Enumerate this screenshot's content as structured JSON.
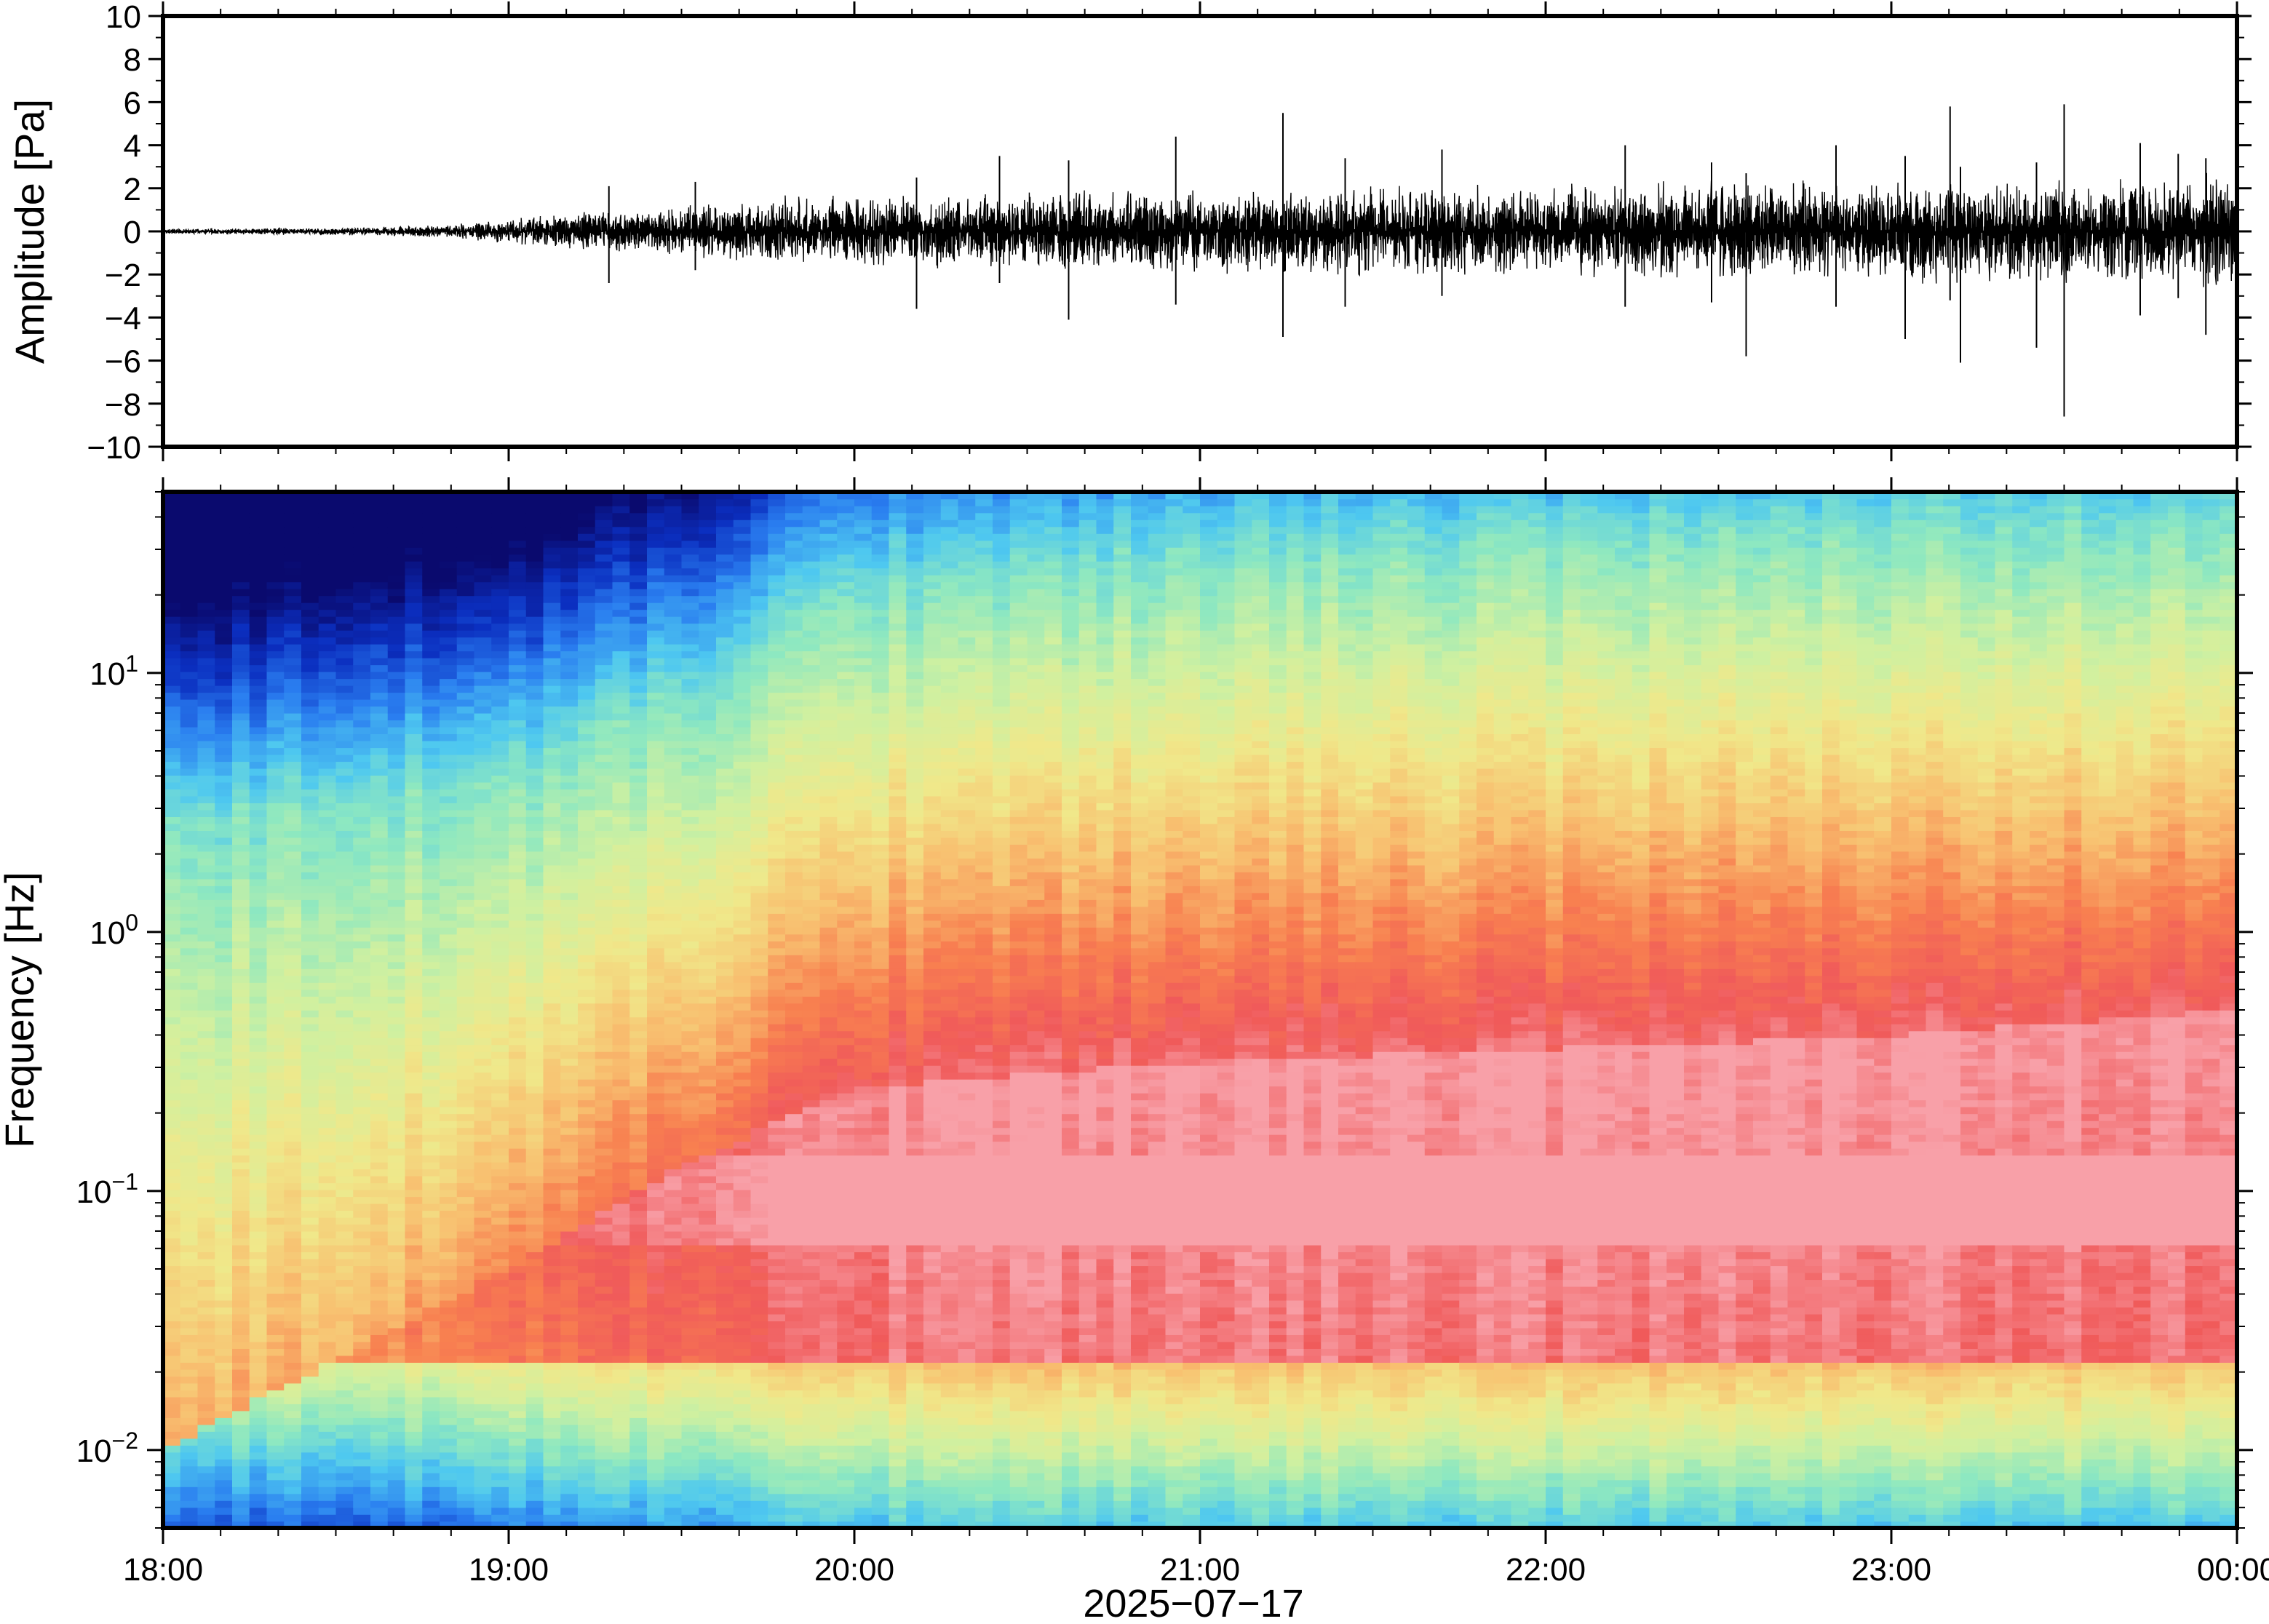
{
  "chart_data": [
    {
      "type": "line",
      "panel": "waveform",
      "ylabel": "Amplitude [Pa]",
      "ylim": [
        -10,
        10
      ],
      "yticks": [
        -10,
        -8,
        -6,
        -4,
        -2,
        0,
        2,
        4,
        6,
        8,
        10
      ],
      "ytick_labels": [
        "−10",
        "−8",
        "−6",
        "−4",
        "−2",
        "0",
        "2",
        "4",
        "6",
        "8",
        "10"
      ],
      "xlim_hours": [
        18,
        24
      ],
      "envelope": {
        "t_hours": [
          18.0,
          18.5,
          18.8,
          19.0,
          19.2,
          19.5,
          19.8,
          20.0,
          20.5,
          21.0,
          21.5,
          22.0,
          22.5,
          23.0,
          23.5,
          24.0
        ],
        "amplitude": [
          0.1,
          0.15,
          0.25,
          0.5,
          0.8,
          1.1,
          1.4,
          1.5,
          1.6,
          1.7,
          1.8,
          1.9,
          2.0,
          2.1,
          2.2,
          2.3
        ]
      },
      "spikes": [
        {
          "t_hours": 19.29,
          "max": 2.1,
          "min": -2.4
        },
        {
          "t_hours": 19.54,
          "max": 2.3,
          "min": -1.8
        },
        {
          "t_hours": 20.18,
          "max": 2.5,
          "min": -3.6
        },
        {
          "t_hours": 20.42,
          "max": 3.5,
          "min": -2.4
        },
        {
          "t_hours": 20.62,
          "max": 3.3,
          "min": -4.1
        },
        {
          "t_hours": 20.93,
          "max": 4.4,
          "min": -3.4
        },
        {
          "t_hours": 21.24,
          "max": 5.5,
          "min": -4.9
        },
        {
          "t_hours": 21.42,
          "max": 3.4,
          "min": -3.5
        },
        {
          "t_hours": 21.7,
          "max": 3.8,
          "min": -3.0
        },
        {
          "t_hours": 22.23,
          "max": 4.0,
          "min": -3.5
        },
        {
          "t_hours": 22.48,
          "max": 3.2,
          "min": -3.3
        },
        {
          "t_hours": 22.58,
          "max": 2.7,
          "min": -5.8
        },
        {
          "t_hours": 22.84,
          "max": 4.0,
          "min": -3.5
        },
        {
          "t_hours": 23.04,
          "max": 3.5,
          "min": -5.0
        },
        {
          "t_hours": 23.17,
          "max": 5.8,
          "min": -3.2
        },
        {
          "t_hours": 23.2,
          "max": 3.0,
          "min": -6.1
        },
        {
          "t_hours": 23.42,
          "max": 3.2,
          "min": -5.4
        },
        {
          "t_hours": 23.5,
          "max": 5.9,
          "min": -8.6
        },
        {
          "t_hours": 23.72,
          "max": 4.1,
          "min": -3.9
        },
        {
          "t_hours": 23.83,
          "max": 3.6,
          "min": -3.1
        },
        {
          "t_hours": 23.91,
          "max": 3.4,
          "min": -4.8
        }
      ],
      "color": "#000000"
    },
    {
      "type": "heatmap",
      "panel": "spectrogram",
      "ylabel": "Frequency [Hz]",
      "yscale": "log",
      "ylim_hz": [
        0.005,
        50
      ],
      "yticks_hz": [
        0.01,
        0.1,
        1,
        10
      ],
      "ytick_labels": [
        {
          "base": "10",
          "exp": "−2"
        },
        {
          "base": "10",
          "exp": "−1"
        },
        {
          "base": "10",
          "exp": "0"
        },
        {
          "base": "10",
          "exp": "1"
        }
      ],
      "xlim_hours": [
        18,
        24
      ],
      "colormap": [
        "#0a0a6e",
        "#0b2fc0",
        "#2a7ef0",
        "#4ec8f0",
        "#8ee8c0",
        "#d0f0a0",
        "#f0e88a",
        "#f8c070",
        "#f88050",
        "#f05a5a",
        "#f8a0a8"
      ],
      "description_levels": {
        "t_hours": [
          18.0,
          19.0,
          19.5,
          20.0,
          21.0,
          22.0,
          23.0,
          24.0
        ],
        "log_f_lower_blue_edge": [
          0.4,
          0.6,
          0.9,
          1.3,
          1.45,
          1.5,
          1.55,
          1.6
        ],
        "log_f_red_band_top": [
          -2.0,
          -1.3,
          -0.9,
          -0.6,
          -0.5,
          -0.45,
          -0.4,
          -0.3
        ]
      }
    }
  ],
  "x_axis": {
    "tick_labels": [
      "18:00",
      "19:00",
      "20:00",
      "21:00",
      "22:00",
      "23:00",
      "00:00"
    ],
    "date_label": "2025−07−17"
  }
}
